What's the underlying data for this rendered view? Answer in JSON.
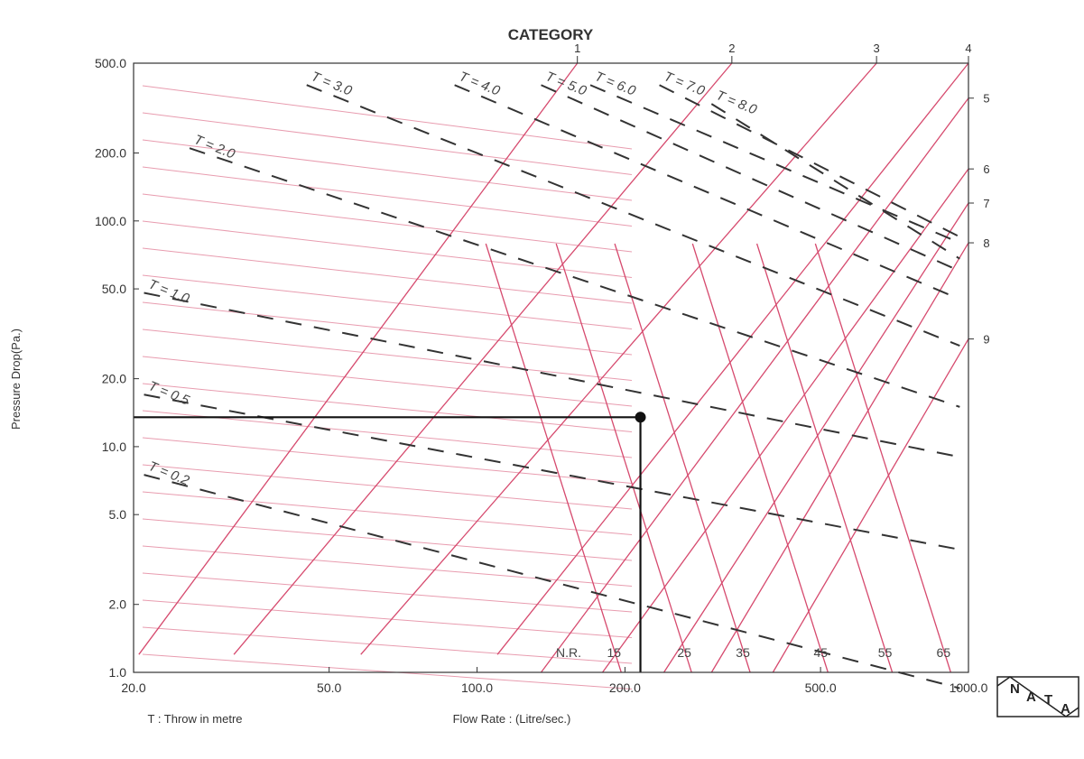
{
  "chart_data": {
    "type": "line",
    "title": "CATEGORY",
    "xlabel": "Flow Rate : (Litre/sec.)",
    "ylabel": "Pressure Drop(Pa.)",
    "footnote": "T : Throw in metre",
    "x_scale": "log",
    "y_scale": "log",
    "xlim": [
      20,
      1000
    ],
    "ylim": [
      1,
      500
    ],
    "x_ticks": [
      "20.0",
      "50.0",
      "100.0",
      "200.0",
      "500.0",
      "1000.0"
    ],
    "x_tick_values": [
      20,
      50,
      100,
      200,
      500,
      1000
    ],
    "y_ticks": [
      "1.0",
      "2.0",
      "5.0",
      "10.0",
      "20.0",
      "50.0",
      "100.0",
      "200.0",
      "500.0"
    ],
    "y_tick_values": [
      1,
      2,
      5,
      10,
      20,
      50,
      100,
      200,
      500
    ],
    "categories_top": [
      "1",
      "2",
      "3",
      "4"
    ],
    "categories_top_x": [
      160,
      330,
      650,
      1000
    ],
    "categories_right": [
      "5",
      "6",
      "7",
      "8",
      "9"
    ],
    "categories_right_y": [
      350,
      170,
      120,
      80,
      30
    ],
    "noise_rating_prefix": "N.R.",
    "noise_rating_lines": [
      {
        "label": "15",
        "x_at_bottom": 205
      },
      {
        "label": "25",
        "x_at_bottom": 285
      },
      {
        "label": "35",
        "x_at_bottom": 375
      },
      {
        "label": "45",
        "x_at_bottom": 540
      },
      {
        "label": "55",
        "x_at_bottom": 730
      },
      {
        "label": "65",
        "x_at_bottom": 960
      }
    ],
    "throw_lines": [
      {
        "label": "T = 0.2",
        "points": [
          [
            21,
            7.5
          ],
          [
            960,
            0.85
          ]
        ]
      },
      {
        "label": "T = 0.5",
        "points": [
          [
            21,
            17
          ],
          [
            960,
            3.5
          ]
        ]
      },
      {
        "label": "T = 1.0",
        "points": [
          [
            21,
            48
          ],
          [
            960,
            9
          ]
        ]
      },
      {
        "label": "T = 2.0",
        "points": [
          [
            26,
            210
          ],
          [
            960,
            15
          ]
        ]
      },
      {
        "label": "T = 3.0",
        "points": [
          [
            45,
            400
          ],
          [
            960,
            28
          ]
        ]
      },
      {
        "label": "T = 4.0",
        "points": [
          [
            90,
            400
          ],
          [
            960,
            45
          ]
        ]
      },
      {
        "label": "T = 5.0",
        "points": [
          [
            135,
            400
          ],
          [
            960,
            60
          ]
        ]
      },
      {
        "label": "T = 6.0",
        "points": [
          [
            170,
            400
          ],
          [
            960,
            80
          ]
        ]
      },
      {
        "label": "T = 7.0",
        "points": [
          [
            235,
            400
          ],
          [
            960,
            85
          ]
        ]
      },
      {
        "label": "T = 8.0",
        "points": [
          [
            300,
            330
          ],
          [
            960,
            68
          ]
        ]
      }
    ],
    "category_lines": [
      {
        "label": "1",
        "points": [
          [
            20.5,
            1.2
          ],
          [
            160,
            500
          ]
        ]
      },
      {
        "label": "2",
        "points": [
          [
            32,
            1.2
          ],
          [
            330,
            500
          ]
        ]
      },
      {
        "label": "3",
        "points": [
          [
            58,
            1.2
          ],
          [
            650,
            500
          ]
        ]
      },
      {
        "label": "4",
        "points": [
          [
            110,
            1.2
          ],
          [
            1000,
            500
          ]
        ]
      },
      {
        "label": "5",
        "points": [
          [
            135,
            1.0
          ],
          [
            1000,
            350
          ]
        ]
      },
      {
        "label": "6",
        "points": [
          [
            180,
            1.0
          ],
          [
            1000,
            170
          ]
        ]
      },
      {
        "label": "7",
        "points": [
          [
            240,
            1.0
          ],
          [
            1000,
            120
          ]
        ]
      },
      {
        "label": "8",
        "points": [
          [
            300,
            1.0
          ],
          [
            1000,
            80
          ]
        ]
      },
      {
        "label": "9",
        "points": [
          [
            400,
            1.0
          ],
          [
            1000,
            30
          ]
        ]
      }
    ],
    "selection": {
      "x": 215,
      "y": 13.5
    },
    "grid": false,
    "legend": "none"
  },
  "logo": {
    "letters": [
      "N",
      "A",
      "T",
      "A"
    ]
  }
}
